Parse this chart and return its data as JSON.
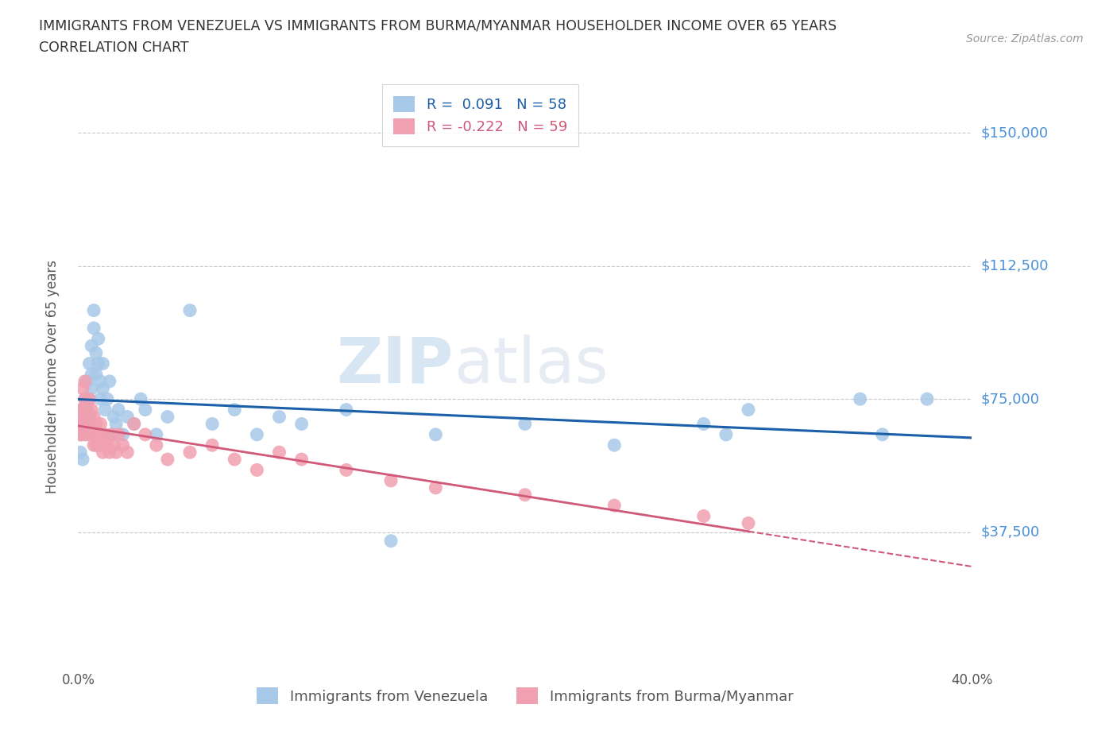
{
  "title_line1": "IMMIGRANTS FROM VENEZUELA VS IMMIGRANTS FROM BURMA/MYANMAR HOUSEHOLDER INCOME OVER 65 YEARS",
  "title_line2": "CORRELATION CHART",
  "source_text": "Source: ZipAtlas.com",
  "watermark_part1": "ZIP",
  "watermark_part2": "atlas",
  "ylabel": "Householder Income Over 65 years",
  "xlim": [
    0.0,
    0.4
  ],
  "ylim": [
    0,
    162500
  ],
  "yticks": [
    0,
    37500,
    75000,
    112500,
    150000
  ],
  "ytick_labels": [
    "",
    "$37,500",
    "$75,000",
    "$112,500",
    "$150,000"
  ],
  "xticks": [
    0.0,
    0.05,
    0.1,
    0.15,
    0.2,
    0.25,
    0.3,
    0.35,
    0.4
  ],
  "legend1_r": "0.091",
  "legend1_n": "58",
  "legend2_r": "-0.222",
  "legend2_n": "59",
  "series1_color": "#A8C8E8",
  "series2_color": "#F0A0B0",
  "series1_line_color": "#1A5FA8",
  "series2_line_color": "#D05878",
  "series1_name": "Immigrants from Venezuela",
  "series2_name": "Immigrants from Burma/Myanmar",
  "background_color": "#FFFFFF",
  "grid_color": "#C8C8C8",
  "title_color": "#333333",
  "axis_label_color": "#555555",
  "ytick_color": "#4A90D9",
  "venezuela_x": [
    0.001,
    0.001,
    0.002,
    0.002,
    0.002,
    0.003,
    0.003,
    0.003,
    0.004,
    0.004,
    0.004,
    0.005,
    0.005,
    0.005,
    0.006,
    0.006,
    0.006,
    0.007,
    0.007,
    0.008,
    0.008,
    0.009,
    0.009,
    0.01,
    0.01,
    0.011,
    0.011,
    0.012,
    0.013,
    0.014,
    0.015,
    0.016,
    0.017,
    0.018,
    0.02,
    0.022,
    0.025,
    0.028,
    0.03,
    0.035,
    0.04,
    0.05,
    0.06,
    0.07,
    0.08,
    0.09,
    0.1,
    0.12,
    0.14,
    0.16,
    0.2,
    0.24,
    0.28,
    0.29,
    0.3,
    0.35,
    0.36,
    0.38
  ],
  "venezuela_y": [
    65000,
    60000,
    72000,
    68000,
    58000,
    75000,
    70000,
    65000,
    80000,
    72000,
    68000,
    85000,
    75000,
    70000,
    90000,
    82000,
    78000,
    100000,
    95000,
    88000,
    82000,
    92000,
    85000,
    80000,
    75000,
    85000,
    78000,
    72000,
    75000,
    80000,
    65000,
    70000,
    68000,
    72000,
    65000,
    70000,
    68000,
    75000,
    72000,
    65000,
    70000,
    100000,
    68000,
    72000,
    65000,
    70000,
    68000,
    72000,
    35000,
    65000,
    68000,
    62000,
    68000,
    65000,
    72000,
    75000,
    65000,
    75000
  ],
  "burma_x": [
    0.001,
    0.001,
    0.001,
    0.002,
    0.002,
    0.002,
    0.002,
    0.003,
    0.003,
    0.003,
    0.003,
    0.004,
    0.004,
    0.004,
    0.005,
    0.005,
    0.005,
    0.006,
    0.006,
    0.006,
    0.007,
    0.007,
    0.007,
    0.007,
    0.008,
    0.008,
    0.008,
    0.009,
    0.009,
    0.01,
    0.01,
    0.011,
    0.011,
    0.012,
    0.013,
    0.014,
    0.015,
    0.016,
    0.017,
    0.018,
    0.02,
    0.022,
    0.025,
    0.03,
    0.035,
    0.04,
    0.05,
    0.06,
    0.07,
    0.08,
    0.09,
    0.1,
    0.12,
    0.14,
    0.16,
    0.2,
    0.24,
    0.28,
    0.3
  ],
  "burma_y": [
    72000,
    68000,
    65000,
    78000,
    72000,
    70000,
    65000,
    80000,
    75000,
    70000,
    68000,
    72000,
    68000,
    65000,
    75000,
    70000,
    68000,
    72000,
    68000,
    65000,
    70000,
    68000,
    65000,
    62000,
    68000,
    65000,
    62000,
    65000,
    62000,
    68000,
    65000,
    62000,
    60000,
    65000,
    62000,
    60000,
    65000,
    62000,
    60000,
    65000,
    62000,
    60000,
    68000,
    65000,
    62000,
    58000,
    60000,
    62000,
    58000,
    55000,
    60000,
    58000,
    55000,
    52000,
    50000,
    48000,
    45000,
    42000,
    40000
  ]
}
